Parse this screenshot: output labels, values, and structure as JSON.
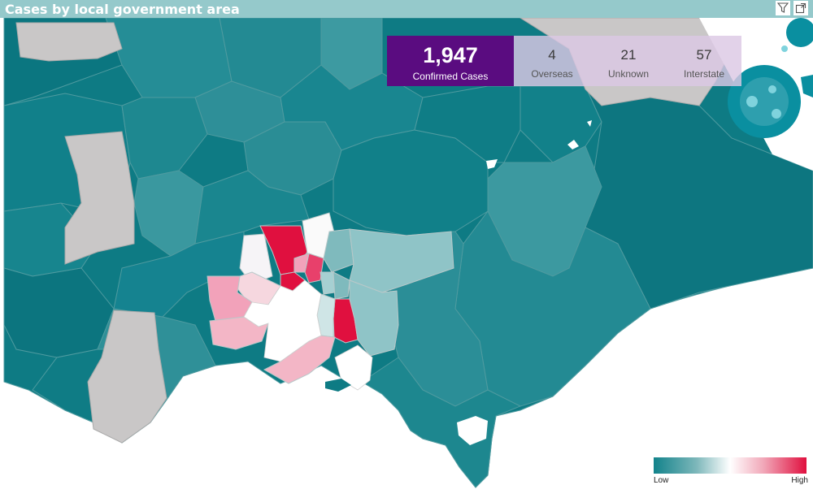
{
  "header": {
    "title": "Cases by local government area",
    "icons": [
      "filter-icon",
      "focus-mode-icon"
    ]
  },
  "kpis": {
    "confirmed": {
      "value": "1,947",
      "label": "Confirmed Cases"
    },
    "overseas": {
      "value": "4",
      "label": "Overseas"
    },
    "unknown": {
      "value": "21",
      "label": "Unknown"
    },
    "interstate": {
      "value": "57",
      "label": "Interstate"
    }
  },
  "legend": {
    "low": "Low",
    "high": "High"
  },
  "colors": {
    "title_bar": "#95c9cb",
    "teal_dark": "#0e7b84",
    "teal_mid": "#2f8f96",
    "teal_light": "#8fc4c7",
    "white": "#ffffff",
    "pink_light": "#f3b6c6",
    "pink_mid": "#f2a2ba",
    "red_high": "#e0103f",
    "no_data_grey": "#c9c7c7",
    "kpi_purple": "#5a0c80"
  }
}
